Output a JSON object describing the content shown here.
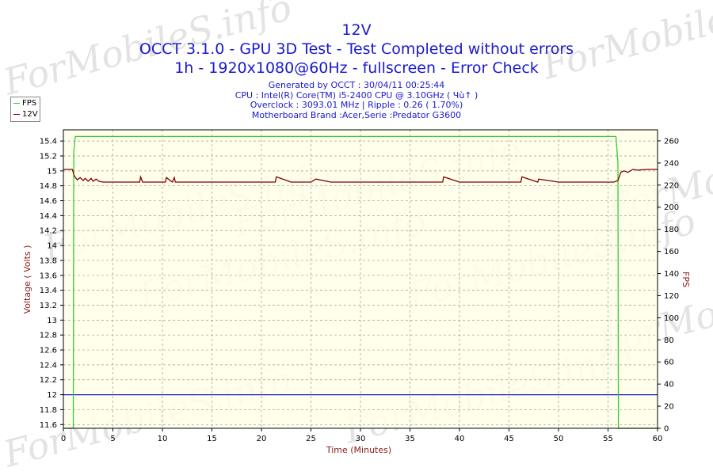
{
  "chart_data": {
    "type": "line",
    "title": "12V",
    "subtitle_lines": [
      "OCCT 3.1.0 - GPU 3D Test - Test Completed without errors",
      "1h - 1920x1080@60Hz - fullscreen - Error Check"
    ],
    "info_lines": [
      "Generated by OCCT : 30/04/11 00:25:44",
      "CPU : Intel(R) Core(TM) i5-2400 CPU @ 3.10GHz ( Чù↑ )",
      "Overclock : 3093.01 MHz | Ripple : 0.26 ( 1.70%)",
      "Motherboard Brand :Acer,Serie :Predator G3600"
    ],
    "xlabel": "Time (Minutes)",
    "ylabel": "Voltage ( Volts )",
    "y2label": "FPS",
    "xlim": [
      0,
      60
    ],
    "ylim": [
      11.55,
      15.55
    ],
    "y2lim": [
      0,
      270
    ],
    "x_ticks": [
      "0",
      "5",
      "10",
      "15",
      "20",
      "25",
      "30",
      "35",
      "40",
      "45",
      "50",
      "55",
      "60"
    ],
    "y_ticks": [
      "15.4",
      "15.2",
      "15",
      "14.8",
      "14.6",
      "14.4",
      "14.2",
      "14",
      "13.8",
      "13.6",
      "13.4",
      "13.2",
      "13",
      "12.8",
      "12.6",
      "12.4",
      "12.2",
      "12",
      "11.8",
      "11.6"
    ],
    "y2_ticks": [
      "260",
      "240",
      "220",
      "200",
      "180",
      "160",
      "140",
      "120",
      "100",
      "80",
      "60",
      "40",
      "20",
      "0"
    ],
    "reference_line_y": 12,
    "grid": true,
    "legend_position": "top-left",
    "series": [
      {
        "name": "FPS",
        "axis": "right",
        "color": "#33cc33",
        "x": [
          0,
          1.0,
          1.05,
          1.2,
          20,
          40,
          55.8,
          56.0,
          56.05,
          56.1,
          60
        ],
        "y": [
          0,
          0,
          250,
          264,
          264,
          264,
          264,
          240,
          0,
          0,
          0
        ]
      },
      {
        "name": "12V",
        "axis": "left",
        "color": "#800000",
        "x": [
          0,
          0.9,
          1.1,
          1.4,
          1.7,
          2.0,
          2.2,
          2.5,
          2.8,
          3.0,
          3.3,
          3.6,
          4.0,
          5,
          7.7,
          7.8,
          8,
          10,
          10.3,
          10.4,
          11,
          11.2,
          11.3,
          13,
          15,
          17,
          19,
          21.4,
          21.5,
          23,
          25,
          25.5,
          27,
          29,
          31,
          32,
          34,
          36,
          38.3,
          38.4,
          40,
          42,
          44,
          46.2,
          46.3,
          47.9,
          48.0,
          50,
          52,
          54,
          55.6,
          56.0,
          56.3,
          56.6,
          57,
          57.5,
          58,
          59,
          60
        ],
        "y": [
          15.02,
          15.02,
          14.93,
          14.88,
          14.91,
          14.87,
          14.9,
          14.86,
          14.9,
          14.86,
          14.89,
          14.86,
          14.85,
          14.85,
          14.85,
          14.92,
          14.85,
          14.85,
          14.85,
          14.91,
          14.85,
          14.91,
          14.85,
          14.85,
          14.85,
          14.85,
          14.85,
          14.85,
          14.92,
          14.85,
          14.85,
          14.89,
          14.85,
          14.85,
          14.85,
          14.85,
          14.85,
          14.85,
          14.85,
          14.92,
          14.85,
          14.85,
          14.85,
          14.85,
          14.92,
          14.85,
          14.89,
          14.85,
          14.85,
          14.85,
          14.85,
          14.87,
          14.98,
          15.0,
          14.98,
          15.02,
          15.01,
          15.02,
          15.02
        ]
      }
    ],
    "plot_bg": "#ffffe8",
    "grid_color": "#999999",
    "reference_color": "#1a1acc"
  },
  "watermark": "ForMobileS.info"
}
